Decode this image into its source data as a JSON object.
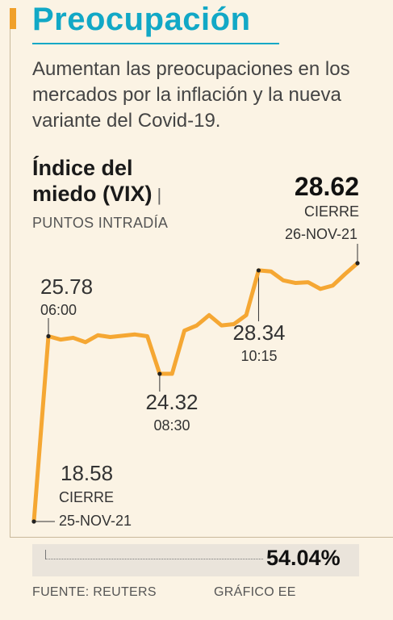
{
  "header": {
    "title": "Preocupación",
    "subtitle": "Aumentan las preocupaciones en los mercados por la inflación y la nueva variante del Covid-19."
  },
  "colors": {
    "brand": "#12a8c6",
    "accent": "#f0a02a",
    "line": "#f5a733",
    "background": "#fbf3e4"
  },
  "chart_data": {
    "type": "line",
    "title": "Índice del miedo (VIX)",
    "unit": "PUNTOS INTRADÍA",
    "series": [
      {
        "values": [
          18.58,
          25.78,
          25.65,
          25.72,
          25.55,
          25.82,
          25.75,
          25.8,
          25.85,
          25.78,
          24.32,
          24.32,
          26.0,
          26.2,
          26.6,
          26.2,
          26.25,
          26.6,
          28.34,
          28.3,
          27.95,
          27.85,
          27.88,
          27.62,
          27.75,
          28.2,
          28.62
        ]
      }
    ],
    "annotations": [
      {
        "value": "25.78",
        "label": "06:00"
      },
      {
        "value": "24.32",
        "label": "08:30"
      },
      {
        "value": "28.34",
        "label": "10:15"
      },
      {
        "value": "18.58",
        "label1": "CIERRE",
        "label2": "25-NOV-21"
      },
      {
        "value": "28.62",
        "label1": "CIERRE",
        "label2": "26-NOV-21"
      }
    ]
  },
  "summary": {
    "change": "54.04%"
  },
  "footer": {
    "source": "FUENTE: REUTERS",
    "credit": "GRÁFICO EE"
  }
}
